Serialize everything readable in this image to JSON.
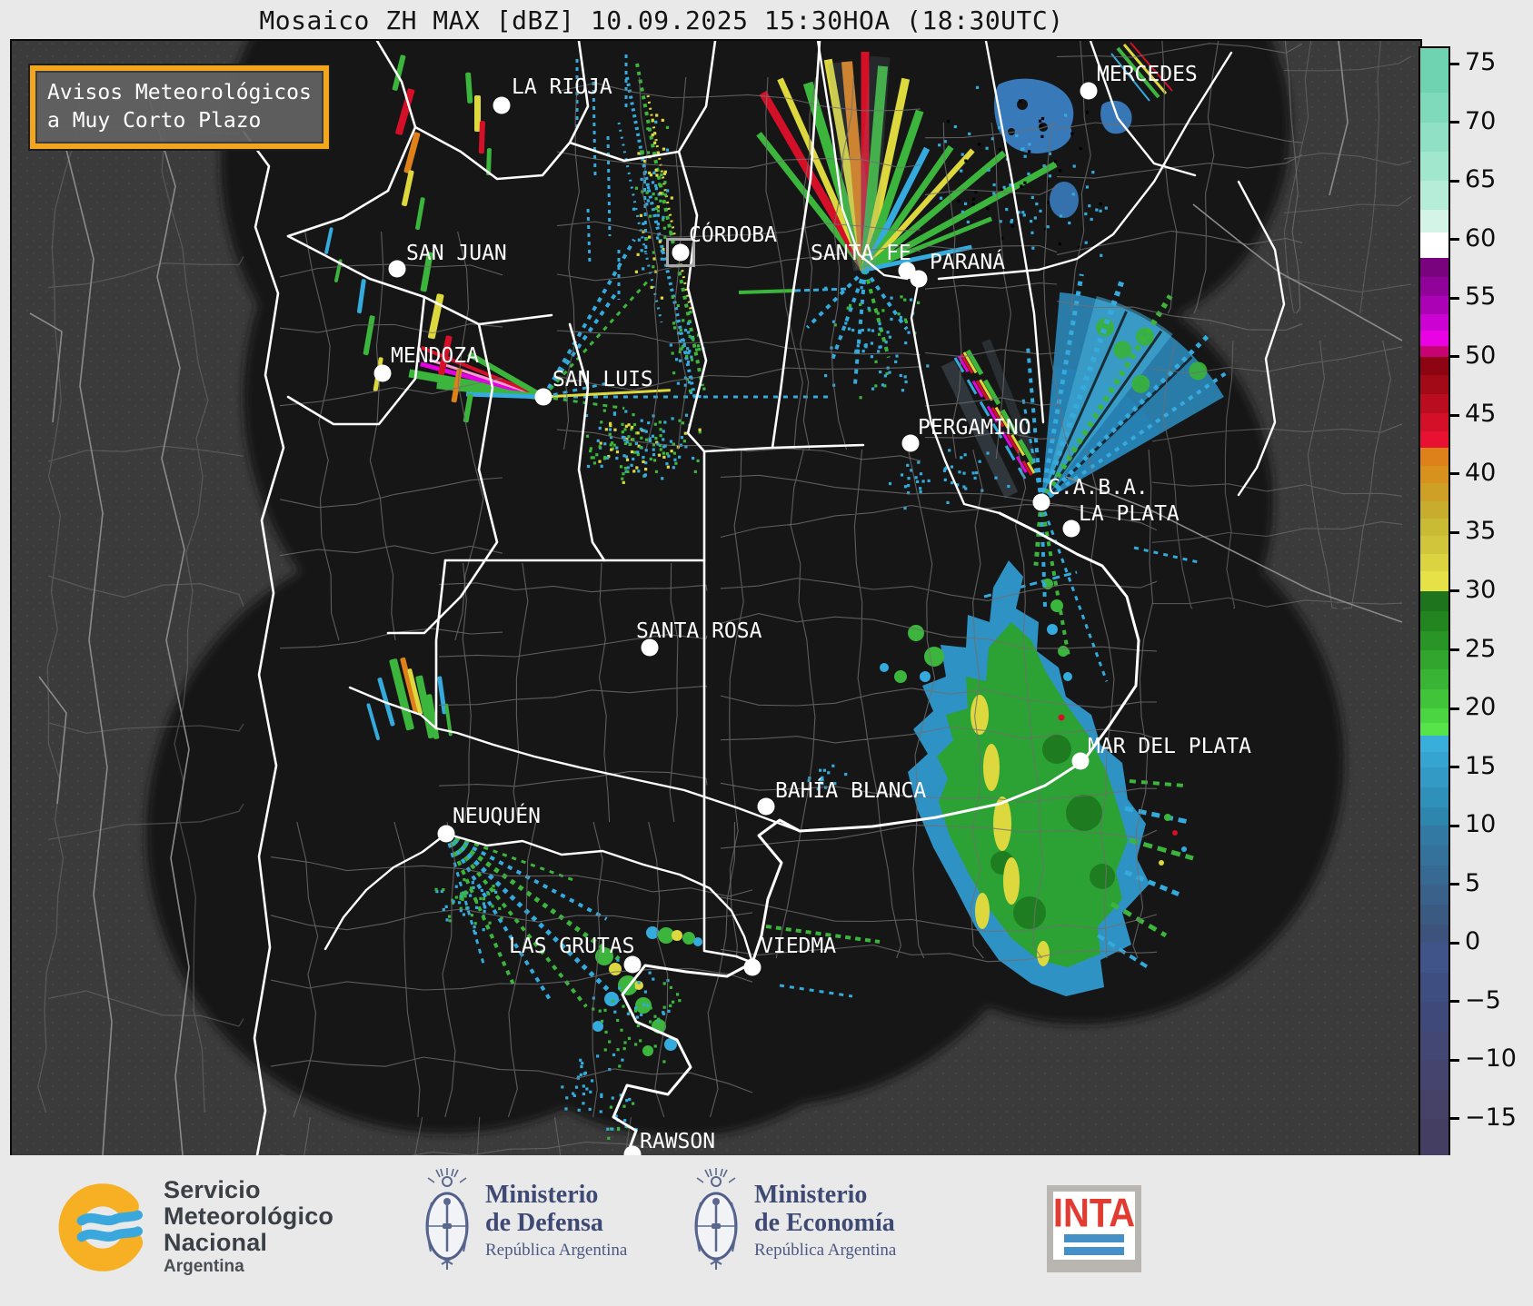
{
  "title": "Mosaico ZH MAX [dBZ] 10.09.2025 15:30HOA (18:30UTC)",
  "alert_box": {
    "line1": "Avisos Meteorológicos",
    "line2": "a Muy Corto Plazo",
    "border_color": "#f2a51e"
  },
  "map": {
    "cities": [
      {
        "name": "LA RIOJA",
        "dot": [
          539,
          71
        ],
        "label": [
          550,
          38
        ],
        "marker": "circle"
      },
      {
        "name": "MERCEDES",
        "dot": [
          1185,
          55
        ],
        "label": [
          1194,
          24
        ],
        "marker": "circle"
      },
      {
        "name": "SAN JUAN",
        "dot": [
          424,
          251
        ],
        "label": [
          434,
          221
        ],
        "marker": "circle"
      },
      {
        "name": "CÓRDOBA",
        "dot": [
          736,
          233
        ],
        "label": [
          745,
          201
        ],
        "marker": "square"
      },
      {
        "name": "SANTA FE",
        "dot": [
          985,
          253
        ],
        "label": [
          879,
          221
        ],
        "marker": "circle"
      },
      {
        "name": "PARANÁ",
        "dot": [
          998,
          262
        ],
        "label": [
          1010,
          231
        ],
        "marker": "circle"
      },
      {
        "name": "MENDOZA",
        "dot": [
          408,
          366
        ],
        "label": [
          417,
          334
        ],
        "marker": "circle"
      },
      {
        "name": "SAN LUIS",
        "dot": [
          585,
          392
        ],
        "label": [
          595,
          360
        ],
        "marker": "circle"
      },
      {
        "name": "PERGAMINO",
        "dot": [
          989,
          443
        ],
        "label": [
          997,
          413
        ],
        "marker": "circle"
      },
      {
        "name": "C.A.B.A.",
        "dot": [
          1133,
          508
        ],
        "label": [
          1140,
          479
        ],
        "marker": "circle"
      },
      {
        "name": "LA PLATA",
        "dot": [
          1166,
          537
        ],
        "label": [
          1174,
          508
        ],
        "marker": "circle"
      },
      {
        "name": "SANTA ROSA",
        "dot": [
          702,
          668
        ],
        "label": [
          687,
          637
        ],
        "marker": "circle"
      },
      {
        "name": "MAR DEL PLATA",
        "dot": [
          1176,
          793
        ],
        "label": [
          1184,
          764
        ],
        "marker": "circle"
      },
      {
        "name": "BAHÍA BLANCA",
        "dot": [
          830,
          843
        ],
        "label": [
          840,
          813
        ],
        "marker": "circle"
      },
      {
        "name": "NEUQUÉN",
        "dot": [
          478,
          873
        ],
        "label": [
          485,
          841
        ],
        "marker": "circle"
      },
      {
        "name": "LAS GRUTAS",
        "dot": [
          683,
          1017
        ],
        "label": [
          547,
          984
        ],
        "marker": "circle"
      },
      {
        "name": "VIEDMA",
        "dot": [
          815,
          1020
        ],
        "label": [
          824,
          984
        ],
        "marker": "circle"
      },
      {
        "name": "RAWSON",
        "dot": [
          683,
          1226
        ],
        "label": [
          691,
          1199
        ],
        "marker": "circle"
      }
    ]
  },
  "colorbar": {
    "unit": "dBZ",
    "ticks": [
      {
        "v": 75,
        "t": "75"
      },
      {
        "v": 70,
        "t": "70"
      },
      {
        "v": 65,
        "t": "65"
      },
      {
        "v": 60,
        "t": "60"
      },
      {
        "v": 55,
        "t": "55"
      },
      {
        "v": 50,
        "t": "50"
      },
      {
        "v": 45,
        "t": "45"
      },
      {
        "v": 40,
        "t": "40"
      },
      {
        "v": 35,
        "t": "35"
      },
      {
        "v": 30,
        "t": "30"
      },
      {
        "v": 25,
        "t": "25"
      },
      {
        "v": 20,
        "t": "20"
      },
      {
        "v": 15,
        "t": "15"
      },
      {
        "v": 10,
        "t": "10"
      },
      {
        "v": 5,
        "t": "5"
      },
      {
        "v": 0,
        "t": "0"
      },
      {
        "v": -5,
        "t": "−5"
      },
      {
        "v": -10,
        "t": "−10"
      },
      {
        "v": -15,
        "t": "−15"
      }
    ],
    "segments": [
      [
        76.3,
        72.5,
        "#6fd2b0"
      ],
      [
        72.5,
        70,
        "#7edaba"
      ],
      [
        70,
        67.5,
        "#8fe0c4"
      ],
      [
        67.5,
        65,
        "#a1e7ce"
      ],
      [
        65,
        62.5,
        "#b6edd9"
      ],
      [
        62.5,
        60.6,
        "#d4f4e8"
      ],
      [
        60.6,
        58.4,
        "#ffffff"
      ],
      [
        58.4,
        56.8,
        "#79027e"
      ],
      [
        56.8,
        55.2,
        "#91029b"
      ],
      [
        55.2,
        53.6,
        "#ab02b5"
      ],
      [
        53.6,
        52.2,
        "#cb02d1"
      ],
      [
        52.2,
        50.9,
        "#e902e4"
      ],
      [
        50.9,
        50,
        "#c70273"
      ],
      [
        50,
        48.4,
        "#8d0512"
      ],
      [
        48.4,
        46.8,
        "#a20a18"
      ],
      [
        46.8,
        45.2,
        "#ba0d1f"
      ],
      [
        45.2,
        43.6,
        "#d41028"
      ],
      [
        43.6,
        42.2,
        "#e91132"
      ],
      [
        42.2,
        40.7,
        "#df811a"
      ],
      [
        40.7,
        39.2,
        "#d7921d"
      ],
      [
        39.2,
        37.7,
        "#cfa026"
      ],
      [
        37.7,
        36.2,
        "#c8ac2e"
      ],
      [
        36.2,
        34.7,
        "#cabb35"
      ],
      [
        34.7,
        33.2,
        "#d1c63b"
      ],
      [
        33.2,
        31.7,
        "#dbd340"
      ],
      [
        31.7,
        30,
        "#e7e148"
      ],
      [
        30,
        28.3,
        "#1d741d"
      ],
      [
        28.3,
        26.6,
        "#238520"
      ],
      [
        26.6,
        25,
        "#2a9527"
      ],
      [
        25,
        23.3,
        "#32a52e"
      ],
      [
        23.3,
        21.6,
        "#3ab434"
      ],
      [
        21.6,
        20,
        "#41c43a"
      ],
      [
        20,
        18.8,
        "#4bd542"
      ],
      [
        18.8,
        17.7,
        "#56e44a"
      ],
      [
        17.7,
        16.3,
        "#3aaedb"
      ],
      [
        16.3,
        15,
        "#35a4d1"
      ],
      [
        15,
        13.3,
        "#329ac5"
      ],
      [
        13.3,
        11.6,
        "#2f90b9"
      ],
      [
        11.6,
        10,
        "#2d86ad"
      ],
      [
        10,
        8.3,
        "#327aa4"
      ],
      [
        8.3,
        6.6,
        "#35729b"
      ],
      [
        6.6,
        5,
        "#376a92"
      ],
      [
        5,
        3.3,
        "#396189"
      ],
      [
        3.3,
        1.6,
        "#3b5a81"
      ],
      [
        1.6,
        0,
        "#3d537b"
      ],
      [
        0,
        -2.5,
        "#405489"
      ],
      [
        -2.5,
        -5,
        "#3f4e81"
      ],
      [
        -5,
        -7.5,
        "#3f4a7b"
      ],
      [
        -7.5,
        -10,
        "#424774"
      ],
      [
        -10,
        -12.5,
        "#45446e"
      ],
      [
        -12.5,
        -15,
        "#464167"
      ],
      [
        -15,
        -18.1,
        "#443e62"
      ]
    ]
  },
  "footer": {
    "smn": {
      "lines": [
        "Servicio",
        "Meteorológico",
        "Nacional"
      ],
      "country": "Argentina"
    },
    "defensa": {
      "ministry": "Ministerio",
      "dept": "de Defensa",
      "country": "República Argentina"
    },
    "economia": {
      "ministry": "Ministerio",
      "dept": "de Economía",
      "country": "República Argentina"
    },
    "inta": {
      "label": "INTA"
    }
  }
}
